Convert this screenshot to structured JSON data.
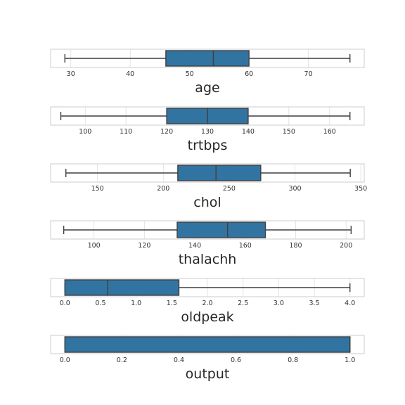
{
  "chart_data": [
    {
      "type": "box",
      "xlabel": "age",
      "xlim": [
        26.6,
        79.4
      ],
      "ticks": [
        "30",
        "40",
        "50",
        "60",
        "70"
      ],
      "box": {
        "min": 29,
        "q1": 46,
        "median": 54,
        "q3": 60,
        "max": 77
      }
    },
    {
      "type": "box",
      "xlabel": "trtbps",
      "xlim": [
        91.5,
        168.5
      ],
      "ticks": [
        "100",
        "110",
        "120",
        "130",
        "140",
        "150",
        "160"
      ],
      "box": {
        "min": 94,
        "q1": 120,
        "median": 130,
        "q3": 140,
        "max": 165
      }
    },
    {
      "type": "box",
      "xlabel": "chol",
      "xlim": [
        114.4,
        352.6
      ],
      "ticks": [
        "150",
        "200",
        "250",
        "300",
        "350"
      ],
      "box": {
        "min": 126,
        "q1": 211,
        "median": 240,
        "q3": 274,
        "max": 342
      }
    },
    {
      "type": "box",
      "xlabel": "thalachh",
      "xlim": [
        82.8,
        207.2
      ],
      "ticks": [
        "100",
        "120",
        "140",
        "160",
        "180",
        "200"
      ],
      "box": {
        "min": 88,
        "q1": 133,
        "median": 153,
        "q3": 168,
        "max": 202
      }
    },
    {
      "type": "box",
      "xlabel": "oldpeak",
      "xlim": [
        -0.2,
        4.2
      ],
      "ticks": [
        "0.0",
        "0.5",
        "1.0",
        "1.5",
        "2.0",
        "2.5",
        "3.0",
        "3.5",
        "4.0"
      ],
      "box": {
        "min": 0.0,
        "q1": 0.0,
        "median": 0.6,
        "q3": 1.6,
        "max": 4.0
      }
    },
    {
      "type": "box",
      "xlabel": "output",
      "xlim": [
        -0.05,
        1.05
      ],
      "ticks": [
        "0.0",
        "0.2",
        "0.4",
        "0.6",
        "0.8",
        "1.0"
      ],
      "box": {
        "min": 0.0,
        "q1": 0.0,
        "median": 1.0,
        "q3": 1.0,
        "max": 1.0
      }
    }
  ],
  "colors": {
    "box_fill": "#3274a1",
    "box_line": "#3f3f3f",
    "grid": "#dddddd",
    "frame": "#cccccc"
  },
  "grid": true
}
